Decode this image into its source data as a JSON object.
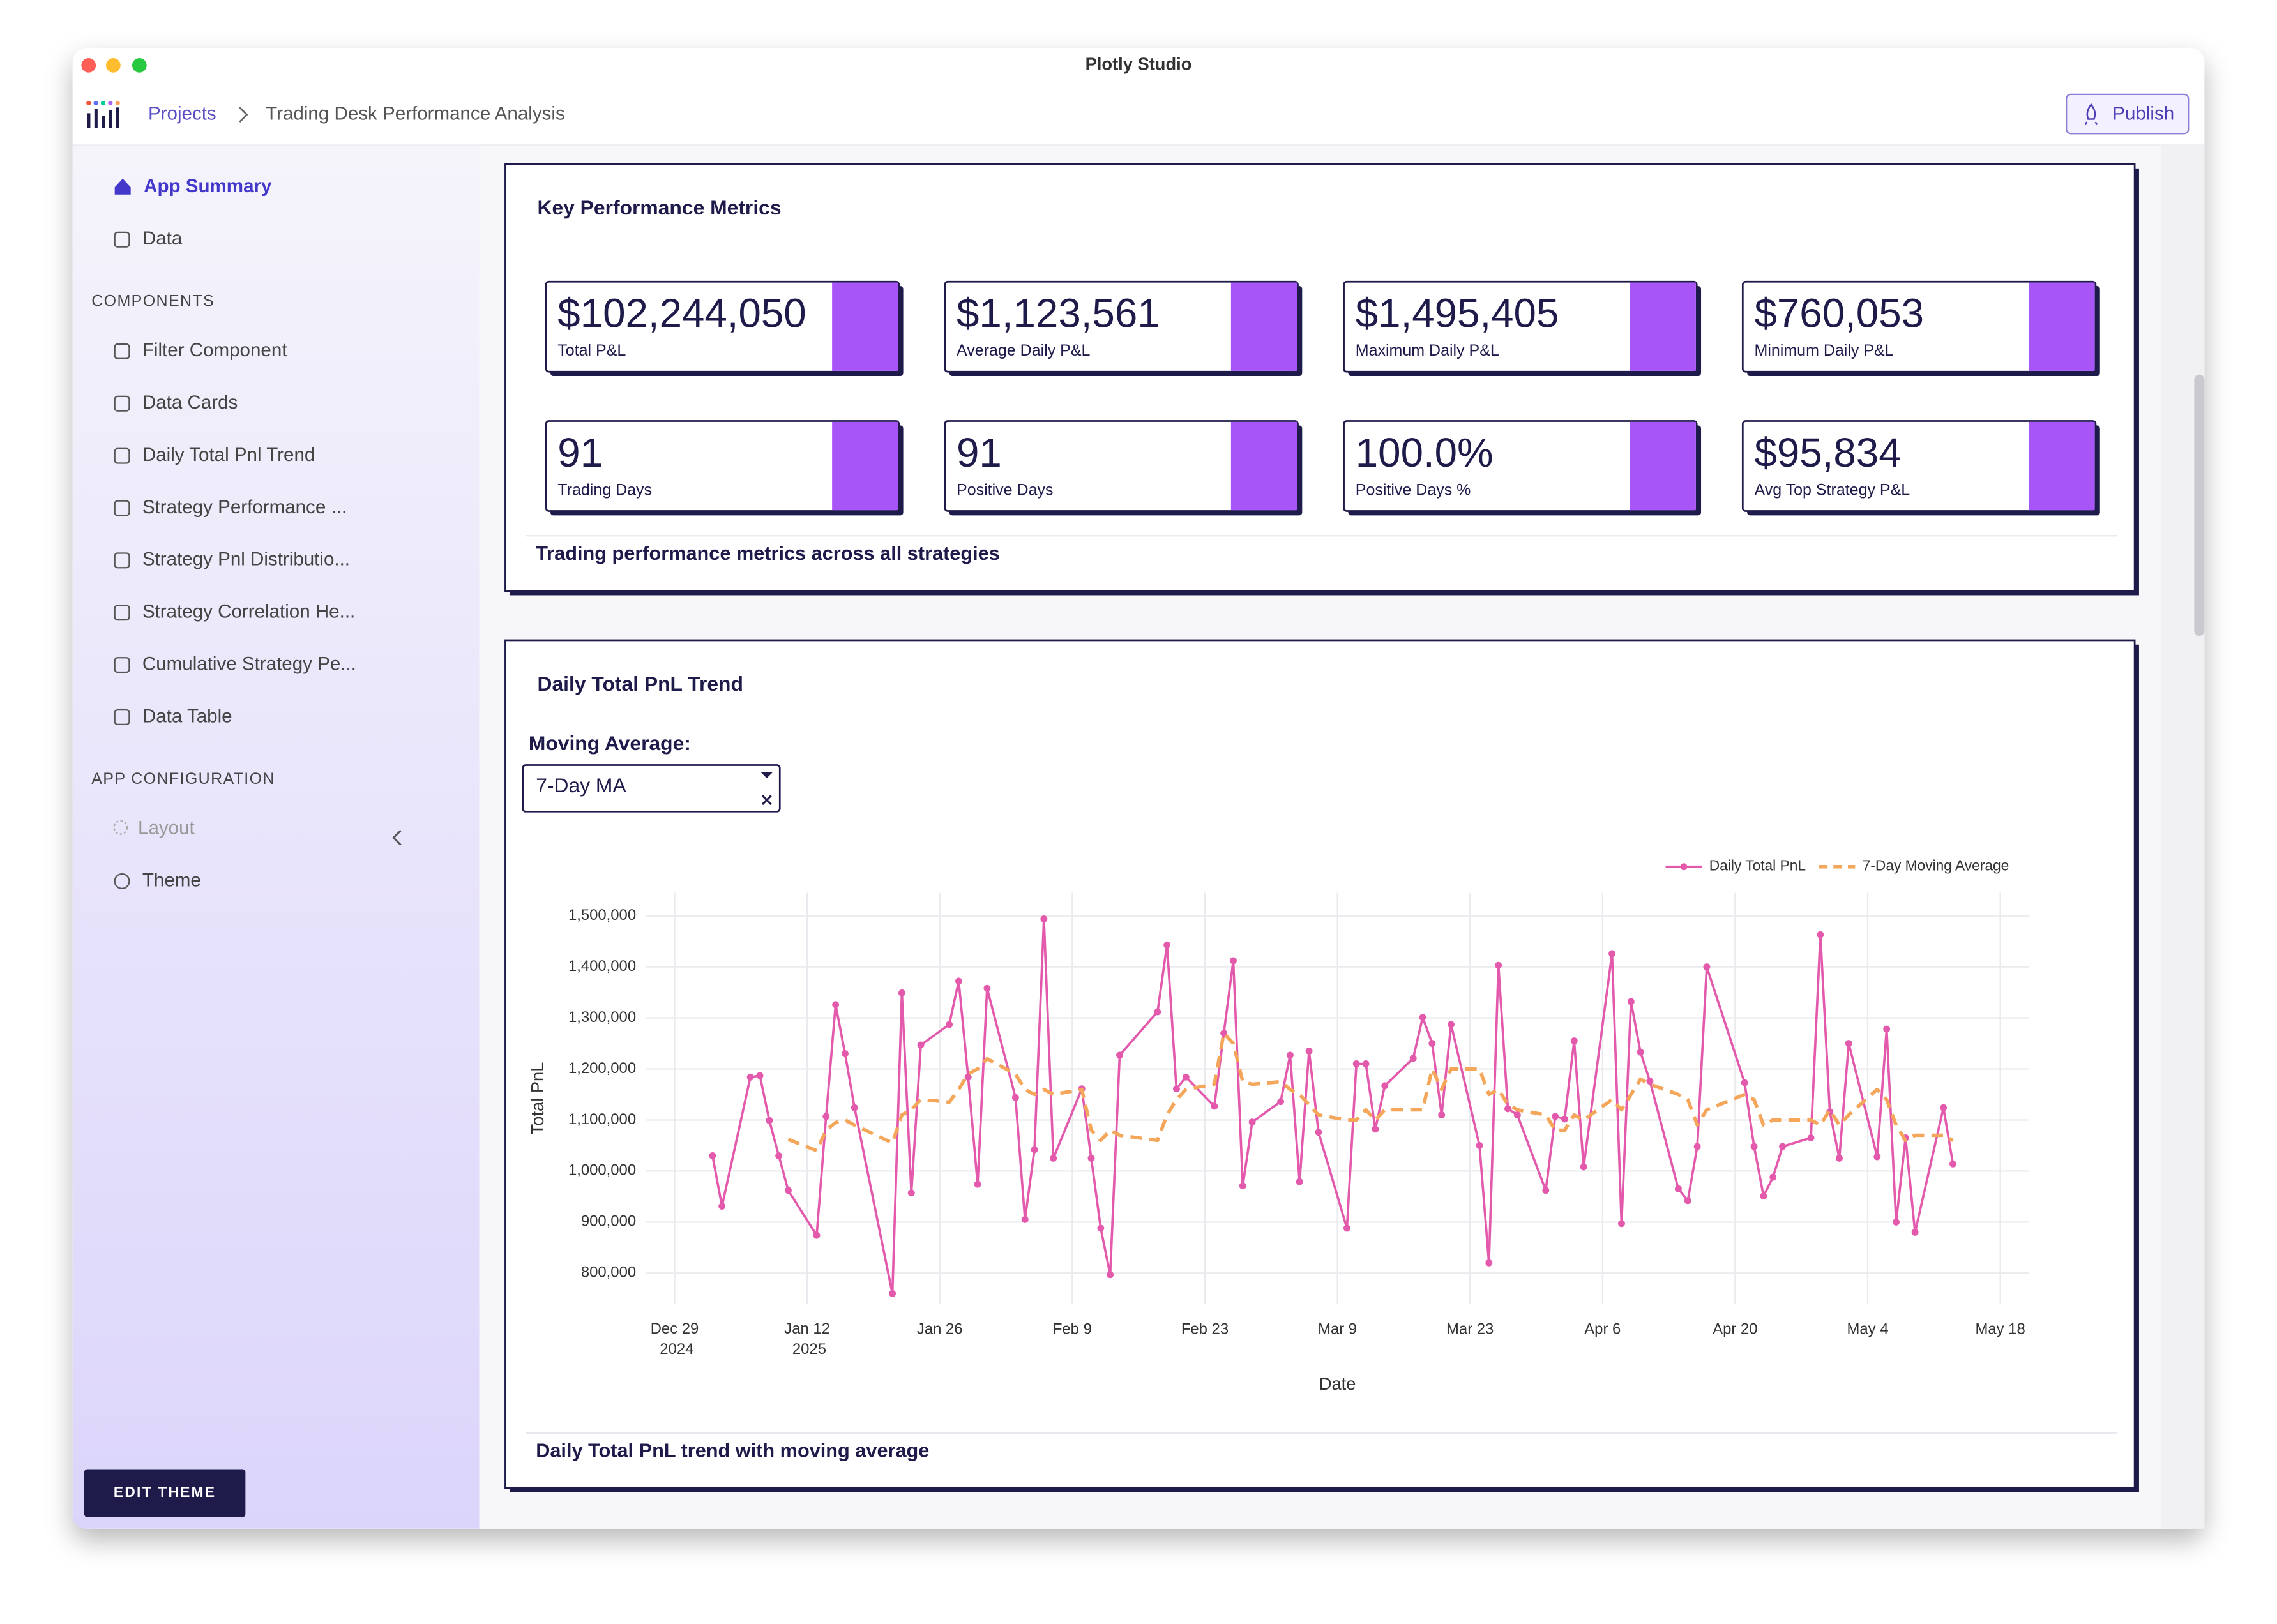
{
  "window": {
    "title": "Plotly Studio"
  },
  "breadcrumb": {
    "root": "Projects",
    "current": "Trading Desk Performance Analysis"
  },
  "publish_button": "Publish",
  "sidebar": {
    "top": [
      "App Summary",
      "Data"
    ],
    "components_heading": "COMPONENTS",
    "components": [
      "Filter Component",
      "Data Cards",
      "Daily Total Pnl Trend",
      "Strategy Performance ...",
      "Strategy Pnl Distributio...",
      "Strategy Correlation He...",
      "Cumulative Strategy Pe...",
      "Data Table"
    ],
    "config_heading": "APP CONFIGURATION",
    "config": [
      "Layout",
      "Theme"
    ],
    "edit_theme": "EDIT THEME"
  },
  "kpi_panel": {
    "title": "Key Performance Metrics",
    "cards": [
      {
        "value": "$102,244,050",
        "label": "Total P&L"
      },
      {
        "value": "$1,123,561",
        "label": "Average Daily P&L"
      },
      {
        "value": "$1,495,405",
        "label": "Maximum Daily P&L"
      },
      {
        "value": "$760,053",
        "label": "Minimum Daily P&L"
      },
      {
        "value": "91",
        "label": "Trading Days"
      },
      {
        "value": "91",
        "label": "Positive Days"
      },
      {
        "value": "100.0%",
        "label": "Positive Days %"
      },
      {
        "value": "$95,834",
        "label": "Avg Top Strategy P&L"
      }
    ],
    "caption": "Trading performance metrics across all strategies"
  },
  "trend_panel": {
    "title": "Daily Total PnL Trend",
    "control_label": "Moving Average:",
    "control_value": "7-Day MA",
    "caption": "Daily Total PnL trend with moving average",
    "chart": {
      "type": "line",
      "x_label": "Date",
      "y_label": "Total PnL",
      "x": [
        "2025-01-02",
        "2025-01-03",
        "2025-01-06",
        "2025-01-07",
        "2025-01-08",
        "2025-01-09",
        "2025-01-10",
        "2025-01-13",
        "2025-01-14",
        "2025-01-15",
        "2025-01-16",
        "2025-01-17",
        "2025-01-21",
        "2025-01-22",
        "2025-01-23",
        "2025-01-24",
        "2025-01-27",
        "2025-01-28",
        "2025-01-29",
        "2025-01-30",
        "2025-01-31",
        "2025-02-03",
        "2025-02-04",
        "2025-02-05",
        "2025-02-06",
        "2025-02-07",
        "2025-02-10",
        "2025-02-11",
        "2025-02-12",
        "2025-02-13",
        "2025-02-14",
        "2025-02-18",
        "2025-02-19",
        "2025-02-20",
        "2025-02-21",
        "2025-02-24",
        "2025-02-25",
        "2025-02-26",
        "2025-02-27",
        "2025-02-28",
        "2025-03-03",
        "2025-03-04",
        "2025-03-05",
        "2025-03-06",
        "2025-03-07",
        "2025-03-10",
        "2025-03-11",
        "2025-03-12",
        "2025-03-13",
        "2025-03-14",
        "2025-03-17",
        "2025-03-18",
        "2025-03-19",
        "2025-03-20",
        "2025-03-21",
        "2025-03-24",
        "2025-03-25",
        "2025-03-26",
        "2025-03-27",
        "2025-03-28",
        "2025-03-31",
        "2025-04-01",
        "2025-04-02",
        "2025-04-03",
        "2025-04-04",
        "2025-04-07",
        "2025-04-08",
        "2025-04-09",
        "2025-04-10",
        "2025-04-11",
        "2025-04-14",
        "2025-04-15",
        "2025-04-16",
        "2025-04-17",
        "2025-04-21",
        "2025-04-22",
        "2025-04-23",
        "2025-04-24",
        "2025-04-25",
        "2025-04-28",
        "2025-04-29",
        "2025-04-30",
        "2025-05-01",
        "2025-05-02",
        "2025-05-05",
        "2025-05-06",
        "2025-05-07",
        "2025-05-08",
        "2025-05-09",
        "2025-05-12",
        "2025-05-13"
      ],
      "series": [
        {
          "name": "Daily Total PnL",
          "color": "#e35aac",
          "style": "solid",
          "markers": true,
          "values": [
            1030000,
            931000,
            1184000,
            1187000,
            1099000,
            1030000,
            962000,
            874000,
            1107000,
            1326000,
            1230000,
            1124000,
            760000,
            1349000,
            957000,
            1247000,
            1287000,
            1372000,
            1184000,
            974000,
            1358000,
            1144000,
            905000,
            1042000,
            1494000,
            1025000,
            1161000,
            1025000,
            888000,
            797000,
            1227000,
            1312000,
            1443000,
            1161000,
            1184000,
            1127000,
            1270000,
            1412000,
            971000,
            1096000,
            1136000,
            1227000,
            979000,
            1235000,
            1076000,
            888000,
            1210000,
            1210000,
            1082000,
            1167000,
            1221000,
            1301000,
            1250000,
            1110000,
            1287000,
            1050000,
            820000,
            1403000,
            1122000,
            1110000,
            962000,
            1107000,
            1102000,
            1255000,
            1008000,
            1426000,
            897000,
            1332000,
            1233000,
            1176000,
            965000,
            942000,
            1048000,
            1400000,
            1173000,
            1048000,
            951000,
            988000,
            1048000,
            1065000,
            1463000,
            1116000,
            1025000,
            1250000,
            1028000,
            1278000,
            900000,
            1065000,
            880000,
            1124000,
            1014000
          ]
        },
        {
          "name": "7-Day Moving Average",
          "color": "#f4a65a",
          "style": "dash",
          "markers": false,
          "values": [
            null,
            null,
            null,
            null,
            null,
            null,
            1062000,
            1040000,
            1080000,
            1095000,
            1100000,
            1090000,
            1055000,
            1110000,
            1120000,
            1140000,
            1135000,
            1160000,
            1190000,
            1200000,
            1220000,
            1190000,
            1160000,
            1150000,
            1160000,
            1150000,
            1160000,
            1080000,
            1060000,
            1080000,
            1070000,
            1060000,
            1110000,
            1140000,
            1160000,
            1170000,
            1270000,
            1250000,
            1175000,
            1170000,
            1175000,
            1160000,
            1150000,
            1130000,
            1110000,
            1100000,
            1100000,
            1120000,
            1100000,
            1120000,
            1120000,
            1120000,
            1200000,
            1160000,
            1200000,
            1200000,
            1150000,
            1160000,
            1130000,
            1120000,
            1110000,
            1080000,
            1080000,
            1110000,
            1100000,
            1140000,
            1120000,
            1150000,
            1180000,
            1170000,
            1150000,
            1140000,
            1090000,
            1120000,
            1150000,
            1140000,
            1090000,
            1100000,
            1100000,
            1100000,
            1090000,
            1120000,
            1090000,
            1110000,
            1160000,
            1140000,
            1090000,
            1060000,
            1070000,
            1070000,
            1060000
          ]
        }
      ],
      "xlim": [
        "2024-12-26",
        "2025-05-21"
      ],
      "xticks": [
        {
          "value": "2024-12-29",
          "label": "Dec 29 2024"
        },
        {
          "value": "2025-01-12",
          "label": "Jan 12 2025"
        },
        {
          "value": "2025-01-26",
          "label": "Jan 26"
        },
        {
          "value": "2025-02-09",
          "label": "Feb 9"
        },
        {
          "value": "2025-02-23",
          "label": "Feb 23"
        },
        {
          "value": "2025-03-09",
          "label": "Mar 9"
        },
        {
          "value": "2025-03-23",
          "label": "Mar 23"
        },
        {
          "value": "2025-04-06",
          "label": "Apr 6"
        },
        {
          "value": "2025-04-20",
          "label": "Apr 20"
        },
        {
          "value": "2025-05-04",
          "label": "May 4"
        },
        {
          "value": "2025-05-18",
          "label": "May 18"
        }
      ],
      "ylim": [
        740000,
        1545000
      ],
      "yticks": [
        {
          "value": 800000,
          "label": "800,000"
        },
        {
          "value": 900000,
          "label": "900,000"
        },
        {
          "value": 1000000,
          "label": "1,000,000"
        },
        {
          "value": 1100000,
          "label": "1,100,000"
        },
        {
          "value": 1200000,
          "label": "1,200,000"
        },
        {
          "value": 1300000,
          "label": "1,300,000"
        },
        {
          "value": 1400000,
          "label": "1,400,000"
        },
        {
          "value": 1500000,
          "label": "1,500,000"
        }
      ],
      "grid": true,
      "legend": "top-right"
    }
  }
}
